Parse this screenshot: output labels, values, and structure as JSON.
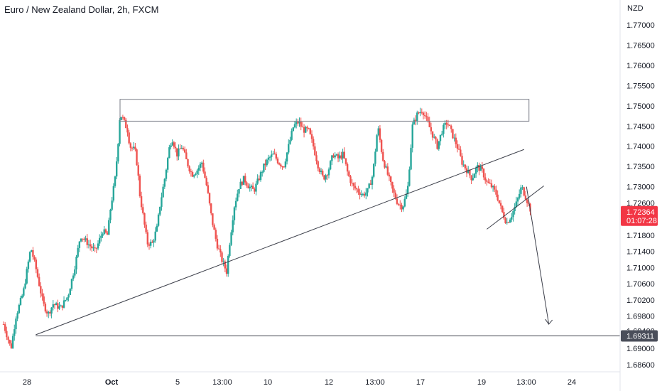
{
  "chart_data": {
    "type": "candlestick",
    "title": "Euro / New Zealand Dollar, 2h, FXCM",
    "currency": "NZD",
    "y_ticks": [
      "1.77000",
      "1.76500",
      "1.76000",
      "1.75500",
      "1.75000",
      "1.74500",
      "1.74000",
      "1.73500",
      "1.73000",
      "1.72600",
      "1.71800",
      "1.71400",
      "1.71000",
      "1.70600",
      "1.70200",
      "1.69800",
      "1.69000",
      "1.68600"
    ],
    "x_ticks": [
      "28",
      "Oct",
      "5",
      "13:00",
      "10",
      "12",
      "13:00",
      "17",
      "19",
      "13:00",
      "24"
    ],
    "last_price": "1.72364",
    "countdown": "01:07:28",
    "marked_level": "1.69311",
    "partially_hidden_tick": "1.69400",
    "up_color": "#26a69a",
    "down_color": "#ef5350",
    "last_price_color": "#f23645",
    "level_tag_color": "#4a4e5a",
    "price_path": [
      [
        0,
        1.696
      ],
      [
        3,
        1.69
      ],
      [
        5,
        1.698
      ],
      [
        8,
        1.704
      ],
      [
        11,
        1.715
      ],
      [
        13,
        1.71
      ],
      [
        16,
        1.701
      ],
      [
        18,
        1.6985
      ],
      [
        20,
        1.701
      ],
      [
        23,
        1.7
      ],
      [
        26,
        1.703
      ],
      [
        29,
        1.711
      ],
      [
        31,
        1.718
      ],
      [
        34,
        1.716
      ],
      [
        37,
        1.714
      ],
      [
        40,
        1.719
      ],
      [
        42,
        1.718
      ],
      [
        43,
        1.724
      ],
      [
        45,
        1.732
      ],
      [
        46,
        1.739
      ],
      [
        47,
        1.748
      ],
      [
        48,
        1.747
      ],
      [
        50,
        1.744
      ],
      [
        51,
        1.74
      ],
      [
        53,
        1.739
      ],
      [
        54,
        1.735
      ],
      [
        55,
        1.728
      ],
      [
        57,
        1.72
      ],
      [
        58,
        1.716
      ],
      [
        60,
        1.716
      ],
      [
        62,
        1.72
      ],
      [
        63,
        1.725
      ],
      [
        65,
        1.732
      ],
      [
        67,
        1.74
      ],
      [
        68,
        1.742
      ],
      [
        70,
        1.738
      ],
      [
        72,
        1.74
      ],
      [
        74,
        1.736
      ],
      [
        76,
        1.733
      ],
      [
        78,
        1.734
      ],
      [
        80,
        1.736
      ],
      [
        82,
        1.73
      ],
      [
        84,
        1.722
      ],
      [
        86,
        1.716
      ],
      [
        88,
        1.712
      ],
      [
        90,
        1.709
      ],
      [
        91,
        1.715
      ],
      [
        93,
        1.725
      ],
      [
        95,
        1.73
      ],
      [
        97,
        1.732
      ],
      [
        99,
        1.73
      ],
      [
        101,
        1.729
      ],
      [
        103,
        1.732
      ],
      [
        105,
        1.735
      ],
      [
        107,
        1.737
      ],
      [
        109,
        1.738
      ],
      [
        111,
        1.736
      ],
      [
        113,
        1.735
      ],
      [
        115,
        1.74
      ],
      [
        117,
        1.745
      ],
      [
        119,
        1.746
      ],
      [
        121,
        1.744
      ],
      [
        123,
        1.744
      ],
      [
        125,
        1.74
      ],
      [
        127,
        1.735
      ],
      [
        129,
        1.732
      ],
      [
        131,
        1.734
      ],
      [
        133,
        1.738
      ],
      [
        135,
        1.737
      ],
      [
        137,
        1.738
      ],
      [
        139,
        1.733
      ],
      [
        141,
        1.73
      ],
      [
        143,
        1.729
      ],
      [
        145,
        1.728
      ],
      [
        147,
        1.729
      ],
      [
        149,
        1.733
      ],
      [
        151,
        1.745
      ],
      [
        153,
        1.737
      ],
      [
        155,
        1.733
      ],
      [
        157,
        1.729
      ],
      [
        159,
        1.726
      ],
      [
        161,
        1.725
      ],
      [
        163,
        1.729
      ],
      [
        165,
        1.745
      ],
      [
        167,
        1.748
      ],
      [
        169,
        1.749
      ],
      [
        171,
        1.746
      ],
      [
        173,
        1.743
      ],
      [
        175,
        1.74
      ],
      [
        177,
        1.744
      ],
      [
        179,
        1.746
      ],
      [
        181,
        1.743
      ],
      [
        183,
        1.74
      ],
      [
        185,
        1.736
      ],
      [
        187,
        1.734
      ],
      [
        189,
        1.732
      ],
      [
        191,
        1.735
      ],
      [
        193,
        1.734
      ],
      [
        195,
        1.731
      ],
      [
        197,
        1.73
      ],
      [
        199,
        1.728
      ],
      [
        201,
        1.724
      ],
      [
        203,
        1.721
      ],
      [
        205,
        1.723
      ],
      [
        207,
        1.726
      ],
      [
        209,
        1.73
      ],
      [
        211,
        1.727
      ],
      [
        213,
        1.7236
      ]
    ],
    "x_range": [
      0,
      233
    ],
    "y_range": [
      1.685,
      1.772
    ],
    "drawings": {
      "resistance_zone": {
        "x": [
          47,
          212
        ],
        "y": [
          1.7462,
          1.7516
        ]
      },
      "rising_trendline": {
        "x": [
          13,
          210
        ],
        "y": [
          1.6934,
          1.7392
        ]
      },
      "wedge_lower_line": {
        "x": [
          195,
          218
        ],
        "y": [
          1.7195,
          1.7302
        ]
      },
      "horizontal_level": {
        "x": [
          13,
          233
        ],
        "y": 1.69311
      },
      "projection_arrow": {
        "x": [
          211,
          220
        ],
        "y": [
          1.73,
          1.696
        ]
      }
    }
  }
}
